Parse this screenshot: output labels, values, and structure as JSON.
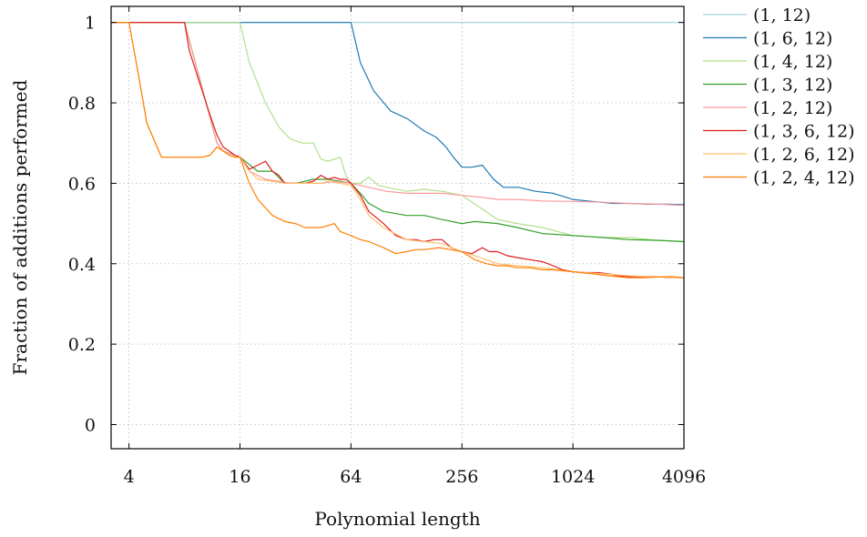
{
  "chart_data": {
    "type": "line",
    "title": "",
    "xlabel": "Polynomial length",
    "ylabel": "Fraction of additions performed",
    "x_scale": "log2",
    "xlim": [
      3.2,
      4096
    ],
    "ylim": [
      -0.06,
      1.04
    ],
    "x_ticks": [
      4,
      16,
      64,
      256,
      1024,
      4096
    ],
    "x_tick_labels": [
      "4",
      "16",
      "64",
      "256",
      "1024",
      "4096"
    ],
    "y_ticks": [
      0,
      0.2,
      0.4,
      0.6,
      0.8,
      1
    ],
    "y_tick_labels": [
      "0",
      "0.2",
      "0.4",
      "0.6",
      "0.8",
      "1"
    ],
    "grid": true,
    "legend_position": "outside-right",
    "series": [
      {
        "name": "(1, 12)",
        "color": "#a6cee3",
        "x": [
          3.2,
          4096
        ],
        "y": [
          1,
          1
        ]
      },
      {
        "name": "(1, 6, 12)",
        "color": "#1f78b4",
        "x": [
          3.2,
          64,
          72,
          85,
          105,
          130,
          160,
          185,
          210,
          230,
          256,
          290,
          330,
          380,
          430,
          520,
          640,
          800,
          1024,
          1300,
          1700,
          2100,
          2600,
          3300,
          4096
        ],
        "y": [
          1,
          1,
          0.9,
          0.83,
          0.78,
          0.76,
          0.73,
          0.715,
          0.69,
          0.665,
          0.64,
          0.64,
          0.645,
          0.61,
          0.59,
          0.59,
          0.58,
          0.575,
          0.56,
          0.555,
          0.55,
          0.55,
          0.548,
          0.548,
          0.547
        ]
      },
      {
        "name": "(1, 4, 12)",
        "color": "#b2df8a",
        "x": [
          3.2,
          16,
          18,
          22,
          26,
          30,
          35,
          40,
          44,
          48,
          52,
          56,
          60,
          64,
          72,
          80,
          90,
          100,
          128,
          160,
          200,
          256,
          320,
          400,
          512,
          700,
          1024,
          1500,
          2048,
          3000,
          4096
        ],
        "y": [
          1,
          1,
          0.9,
          0.8,
          0.74,
          0.71,
          0.7,
          0.7,
          0.66,
          0.655,
          0.66,
          0.665,
          0.62,
          0.6,
          0.6,
          0.615,
          0.595,
          0.59,
          0.58,
          0.585,
          0.58,
          0.57,
          0.54,
          0.51,
          0.5,
          0.49,
          0.47,
          0.465,
          0.465,
          0.458,
          0.455
        ]
      },
      {
        "name": "(1, 3, 12)",
        "color": "#33a02c",
        "x": [
          3.2,
          4,
          8,
          12,
          13,
          15,
          16,
          20,
          24,
          28,
          32,
          40,
          48,
          56,
          64,
          72,
          80,
          96,
          128,
          160,
          200,
          256,
          300,
          400,
          512,
          700,
          1024,
          1500,
          2048,
          3000,
          4096
        ],
        "y": [
          1,
          1,
          1,
          0.7,
          0.68,
          0.67,
          0.665,
          0.63,
          0.63,
          0.6,
          0.6,
          0.61,
          0.61,
          0.605,
          0.6,
          0.575,
          0.55,
          0.53,
          0.52,
          0.52,
          0.51,
          0.5,
          0.505,
          0.5,
          0.49,
          0.475,
          0.47,
          0.465,
          0.46,
          0.458,
          0.455
        ]
      },
      {
        "name": "(1, 2, 12)",
        "color": "#fb9a99",
        "x": [
          3.2,
          4,
          8,
          12,
          13,
          15,
          16,
          18,
          22,
          26,
          30,
          36,
          44,
          52,
          64,
          80,
          100,
          128,
          160,
          200,
          256,
          330,
          400,
          512,
          700,
          1024,
          1500,
          2048,
          3000,
          4096
        ],
        "y": [
          1,
          1,
          1,
          0.7,
          0.68,
          0.67,
          0.665,
          0.63,
          0.61,
          0.605,
          0.6,
          0.6,
          0.6,
          0.605,
          0.6,
          0.59,
          0.58,
          0.575,
          0.575,
          0.575,
          0.57,
          0.565,
          0.56,
          0.56,
          0.556,
          0.555,
          0.553,
          0.55,
          0.548,
          0.545
        ]
      },
      {
        "name": "(1, 3, 6, 12)",
        "color": "#e31a1c",
        "x": [
          3.2,
          4,
          8,
          8.5,
          9.5,
          11,
          12,
          13,
          14,
          15,
          16,
          18,
          20,
          22,
          24,
          26,
          28,
          32,
          36,
          40,
          44,
          48,
          52,
          56,
          60,
          64,
          72,
          80,
          96,
          112,
          128,
          144,
          160,
          180,
          200,
          224,
          256,
          290,
          330,
          360,
          400,
          450,
          512,
          600,
          700,
          800,
          900,
          1024,
          1200,
          1400,
          1600,
          1800,
          2048,
          2400,
          2800,
          3300,
          4096
        ],
        "y": [
          1,
          1,
          1,
          0.93,
          0.86,
          0.77,
          0.72,
          0.69,
          0.68,
          0.67,
          0.665,
          0.635,
          0.645,
          0.655,
          0.63,
          0.62,
          0.6,
          0.6,
          0.6,
          0.605,
          0.62,
          0.61,
          0.615,
          0.61,
          0.61,
          0.6,
          0.57,
          0.53,
          0.5,
          0.47,
          0.46,
          0.46,
          0.455,
          0.46,
          0.46,
          0.44,
          0.43,
          0.425,
          0.44,
          0.43,
          0.43,
          0.42,
          0.415,
          0.41,
          0.405,
          0.395,
          0.385,
          0.38,
          0.378,
          0.378,
          0.375,
          0.37,
          0.368,
          0.368,
          0.368,
          0.366,
          0.365
        ]
      },
      {
        "name": "(1, 2, 6, 12)",
        "color": "#fdbf6f",
        "x": [
          3.2,
          4,
          4.5,
          5,
          6,
          7,
          8,
          9,
          10,
          11,
          12,
          13,
          14,
          15,
          16,
          18,
          20,
          24,
          28,
          32,
          36,
          40,
          44,
          48,
          56,
          64,
          72,
          80,
          96,
          128,
          160,
          200,
          256,
          300,
          400,
          512,
          700,
          1024,
          1500,
          2048,
          3000,
          4096
        ],
        "y": [
          1,
          1,
          0.87,
          0.75,
          0.665,
          0.665,
          0.665,
          0.665,
          0.665,
          0.67,
          0.69,
          0.68,
          0.67,
          0.665,
          0.665,
          0.63,
          0.61,
          0.605,
          0.6,
          0.6,
          0.6,
          0.6,
          0.6,
          0.605,
          0.6,
          0.595,
          0.56,
          0.52,
          0.49,
          0.46,
          0.455,
          0.45,
          0.43,
          0.42,
          0.4,
          0.395,
          0.39,
          0.38,
          0.375,
          0.37,
          0.367,
          0.365
        ]
      },
      {
        "name": "(1, 2, 4, 12)",
        "color": "#ff7f00",
        "x": [
          3.2,
          4,
          4.5,
          5,
          6,
          7,
          8,
          9,
          10,
          11,
          12,
          13,
          14,
          15,
          16,
          18,
          20,
          24,
          28,
          32,
          36,
          40,
          44,
          48,
          52,
          56,
          64,
          72,
          80,
          96,
          112,
          128,
          144,
          160,
          192,
          224,
          256,
          300,
          350,
          400,
          450,
          512,
          600,
          700,
          800,
          1024,
          1300,
          1600,
          2048,
          2500,
          3000,
          3500,
          4096
        ],
        "y": [
          1,
          1,
          0.87,
          0.75,
          0.665,
          0.665,
          0.665,
          0.665,
          0.665,
          0.67,
          0.69,
          0.68,
          0.67,
          0.665,
          0.665,
          0.6,
          0.56,
          0.52,
          0.505,
          0.5,
          0.49,
          0.49,
          0.49,
          0.495,
          0.5,
          0.48,
          0.47,
          0.46,
          0.455,
          0.44,
          0.425,
          0.43,
          0.435,
          0.435,
          0.44,
          0.435,
          0.43,
          0.41,
          0.4,
          0.395,
          0.395,
          0.39,
          0.39,
          0.385,
          0.385,
          0.38,
          0.375,
          0.37,
          0.365,
          0.365,
          0.367,
          0.368,
          0.365
        ]
      }
    ]
  }
}
